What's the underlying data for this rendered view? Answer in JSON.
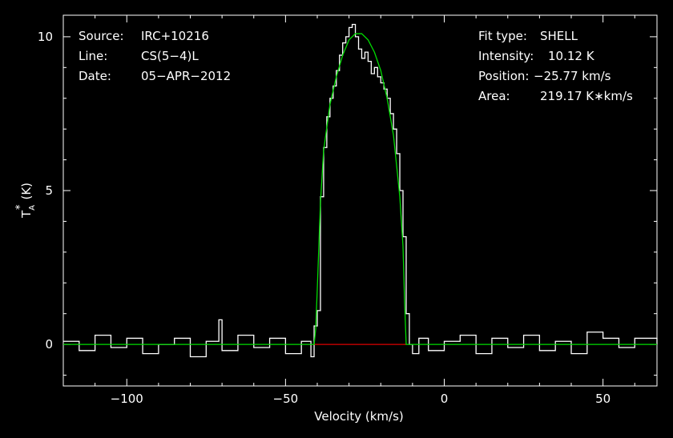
{
  "chart_data": {
    "type": "line",
    "xlabel": "Velocity (km/s)",
    "ylabel": "T",
    "ylabel_sub": "A",
    "ylabel_sup": "*",
    "ylabel_unit": "(K)",
    "xlim": [
      -120,
      67
    ],
    "ylim": [
      -1.35,
      10.7
    ],
    "xticks": [
      -100,
      -50,
      0,
      50
    ],
    "xtick_labels": [
      "−100",
      "−50",
      "0",
      "50"
    ],
    "yticks": [
      0,
      5,
      10
    ],
    "ytick_labels": [
      "0",
      "5",
      "10"
    ],
    "grid": false,
    "colors": {
      "background": "#000000",
      "axes": "#ffffff",
      "spectrum": "#ffffff",
      "fit": "#00dd00",
      "baseline": "#dd0000"
    },
    "info_left": [
      {
        "key": "Source:",
        "value": "IRC+10216"
      },
      {
        "key": "Line:",
        "value": "CS(5−4)L"
      },
      {
        "key": "Date:",
        "value": "05−APR−2012"
      }
    ],
    "info_right": [
      {
        "key": "Fit type:",
        "value": "SHELL"
      },
      {
        "key": "Intensity:",
        "value": "10.12 K"
      },
      {
        "key": "Position:",
        "value": "−25.77 km/s"
      },
      {
        "key": "Area:",
        "value": "219.17 K∗km/s"
      }
    ],
    "series": [
      {
        "role": "observed spectrum",
        "x": [
          -120,
          -115,
          -110,
          -105,
          -100,
          -95,
          -90,
          -85,
          -80,
          -75,
          -71,
          -70,
          -65,
          -60,
          -55,
          -50,
          -45,
          -42,
          -41,
          -40,
          -39,
          -38,
          -37,
          -36,
          -35,
          -34,
          -33,
          -32,
          -31,
          -30,
          -29,
          -28,
          -27,
          -26,
          -25,
          -24,
          -23,
          -22,
          -21,
          -20,
          -19,
          -18,
          -17,
          -16,
          -15,
          -14,
          -13,
          -12,
          -11,
          -10,
          -8,
          -5,
          0,
          5,
          10,
          15,
          20,
          25,
          30,
          35,
          40,
          45,
          50,
          55,
          60,
          67
        ],
        "y": [
          0.1,
          -0.2,
          0.3,
          -0.1,
          0.2,
          -0.3,
          0.0,
          0.2,
          -0.4,
          0.1,
          0.8,
          -0.2,
          0.3,
          -0.1,
          0.2,
          -0.3,
          0.1,
          -0.4,
          0.6,
          1.1,
          4.8,
          6.4,
          7.4,
          8.0,
          8.4,
          8.9,
          9.4,
          9.8,
          10.0,
          10.3,
          10.4,
          10.0,
          9.6,
          9.3,
          9.5,
          9.2,
          8.8,
          9.0,
          8.7,
          8.5,
          8.3,
          8.0,
          7.5,
          7.0,
          6.2,
          5.0,
          3.5,
          1.0,
          0.0,
          -0.3,
          0.2,
          -0.2,
          0.1,
          0.3,
          -0.3,
          0.2,
          -0.1,
          0.3,
          -0.2,
          0.1,
          -0.3,
          0.4,
          0.2,
          -0.1,
          0.2,
          0.0
        ]
      },
      {
        "role": "SHELL fit",
        "x": [
          -120,
          -41,
          -40.5,
          -40,
          -39,
          -38,
          -36,
          -34,
          -32,
          -30,
          -28,
          -26,
          -24,
          -22,
          -20,
          -18,
          -16,
          -14,
          -13,
          -12.5,
          -12,
          67
        ],
        "y": [
          0,
          0,
          0.5,
          1.8,
          4.6,
          6.3,
          7.8,
          8.7,
          9.4,
          9.9,
          10.1,
          10.1,
          9.9,
          9.5,
          8.9,
          8.0,
          6.8,
          4.8,
          3.2,
          1.4,
          0,
          0
        ]
      },
      {
        "role": "baseline",
        "x": [
          -41,
          -12
        ],
        "y": [
          0,
          0
        ]
      }
    ]
  }
}
